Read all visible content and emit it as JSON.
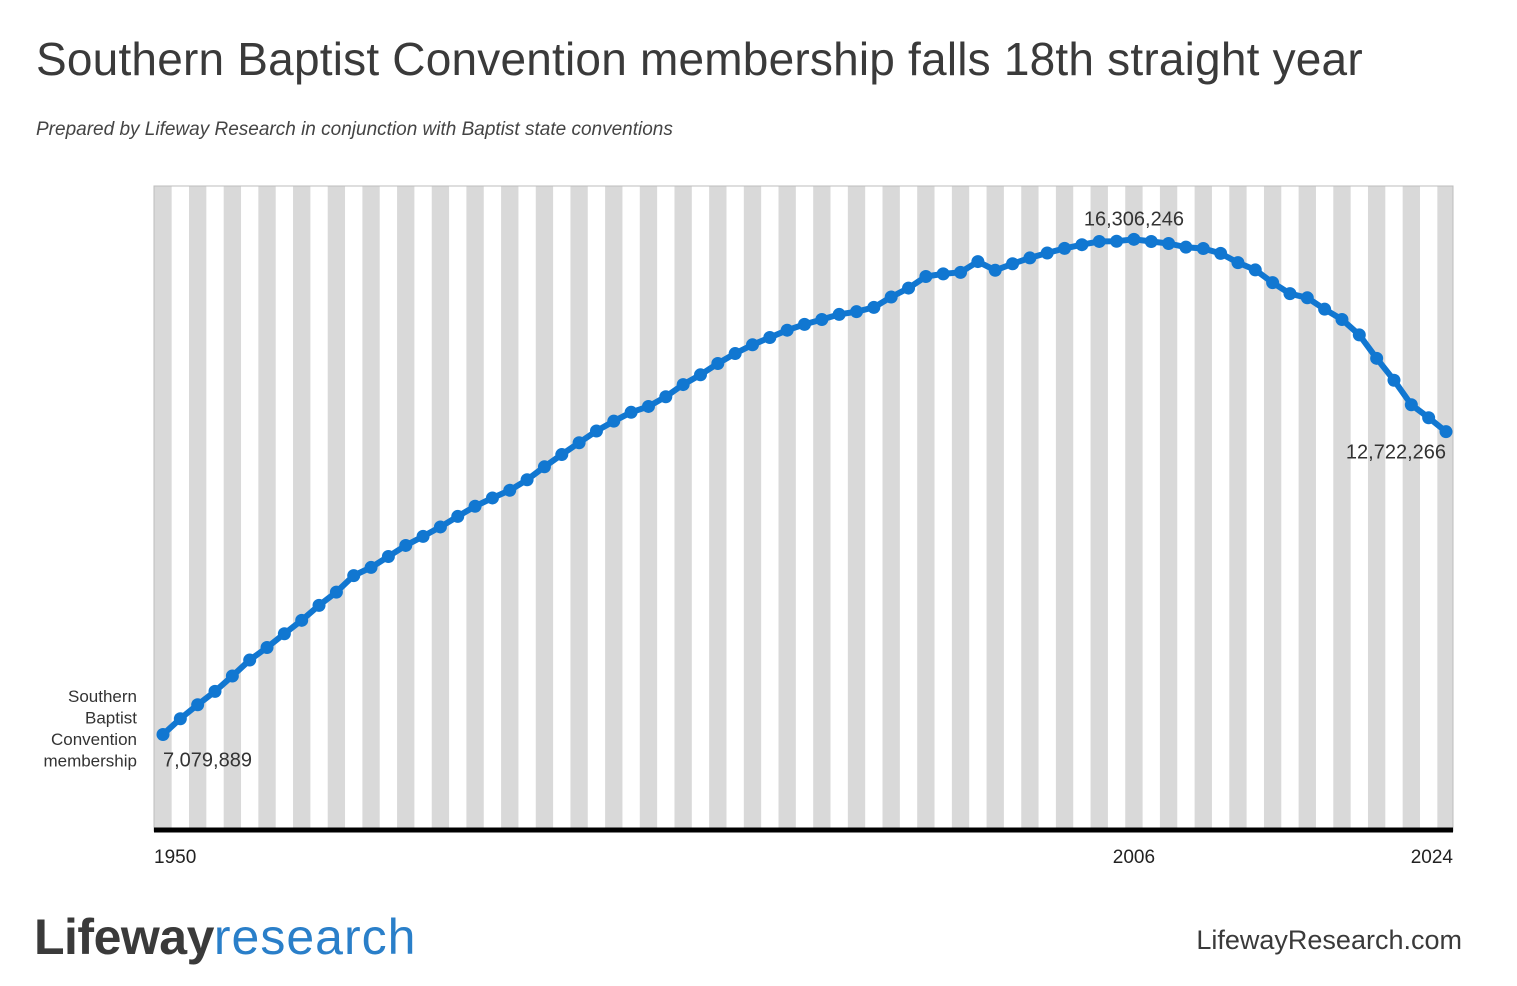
{
  "header": {
    "title": "Southern Baptist Convention membership falls 18th straight year",
    "subtitle": "Prepared by Lifeway Research in conjunction with Baptist state conventions"
  },
  "footer": {
    "brand_part1": "Lifeway",
    "brand_part2": "research",
    "website": "LifewayResearch.com"
  },
  "colors": {
    "line": "#1177d1",
    "stripe": "#d9d9d9",
    "axis": "#000000"
  },
  "chart_data": {
    "type": "line",
    "series_label": [
      "Southern",
      "Baptist",
      "Convention",
      "membership"
    ],
    "x_tick_labels": [
      "1950",
      "2006",
      "2024"
    ],
    "x_range": [
      1950,
      2024
    ],
    "y_range": [
      5300000,
      17300000
    ],
    "grid": "alternating vertical year stripes",
    "annotations": [
      {
        "year": 1950,
        "text": "7,079,889"
      },
      {
        "year": 2006,
        "text": "16,306,246"
      },
      {
        "year": 2024,
        "text": "12,722,266"
      }
    ],
    "x": [
      1950,
      1951,
      1952,
      1953,
      1954,
      1955,
      1956,
      1957,
      1958,
      1959,
      1960,
      1961,
      1962,
      1963,
      1964,
      1965,
      1966,
      1967,
      1968,
      1969,
      1970,
      1971,
      1972,
      1973,
      1974,
      1975,
      1976,
      1977,
      1978,
      1979,
      1980,
      1981,
      1982,
      1983,
      1984,
      1985,
      1986,
      1987,
      1988,
      1989,
      1990,
      1991,
      1992,
      1993,
      1994,
      1995,
      1996,
      1997,
      1998,
      1999,
      2000,
      2001,
      2002,
      2003,
      2004,
      2005,
      2006,
      2007,
      2008,
      2009,
      2010,
      2011,
      2012,
      2013,
      2014,
      2015,
      2016,
      2017,
      2018,
      2019,
      2020,
      2021,
      2022,
      2023,
      2024
    ],
    "values": [
      7079889,
      7373000,
      7634000,
      7883000,
      8169000,
      8467000,
      8701000,
      8957000,
      9207000,
      9485000,
      9732000,
      10040000,
      10193000,
      10396000,
      10602000,
      10771000,
      10947000,
      11143000,
      11332000,
      11487000,
      11630000,
      11826000,
      12068000,
      12296000,
      12516000,
      12735000,
      12918000,
      13083000,
      13192000,
      13373000,
      13600000,
      13782000,
      13992000,
      14178000,
      14341000,
      14477000,
      14613000,
      14722000,
      14812000,
      14907000,
      14958000,
      15038000,
      15232000,
      15398000,
      15614000,
      15663000,
      15691000,
      15892000,
      15729000,
      15851000,
      15960000,
      16052000,
      16138000,
      16206000,
      16267000,
      16271000,
      16306246,
      16266000,
      16228000,
      16160000,
      16136000,
      16045000,
      15872000,
      15736000,
      15500000,
      15294000,
      15217000,
      15005000,
      14813000,
      14525000,
      14089000,
      13681000,
      13224000,
      12982000,
      12722266
    ]
  }
}
